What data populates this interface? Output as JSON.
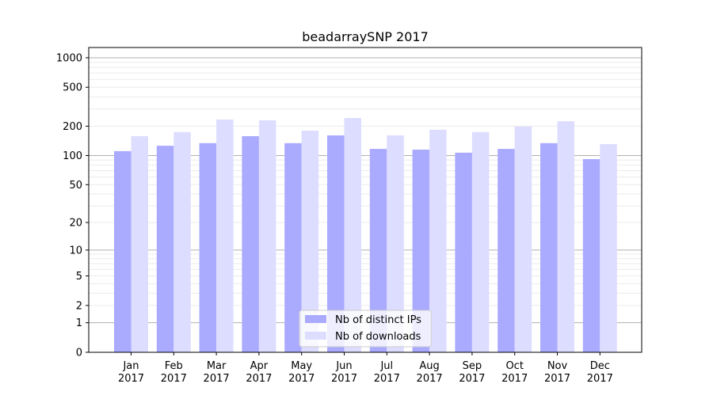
{
  "chart_data": {
    "type": "bar",
    "title": "beadarraySNP 2017",
    "xlabel": "",
    "ylabel": "",
    "yscale": "symlog (log10(1+y))",
    "ylim": [
      0,
      1270
    ],
    "yticks": [
      0,
      1,
      2,
      5,
      10,
      20,
      50,
      100,
      200,
      500,
      1000
    ],
    "grid": true,
    "legend_position": "bottom-center",
    "categories": [
      "Jan\n2017",
      "Feb\n2017",
      "Mar\n2017",
      "Apr\n2017",
      "May\n2017",
      "Jun\n2017",
      "Jul\n2017",
      "Aug\n2017",
      "Sep\n2017",
      "Oct\n2017",
      "Nov\n2017",
      "Dec\n2017"
    ],
    "series": [
      {
        "name": "Nb of distinct IPs",
        "color": "#aaaaff",
        "values": [
          111,
          126,
          134,
          158,
          134,
          161,
          117,
          115,
          107,
          117,
          134,
          92
        ]
      },
      {
        "name": "Nb of downloads",
        "color": "#ddddff",
        "values": [
          158,
          174,
          234,
          230,
          180,
          243,
          161,
          184,
          174,
          198,
          225,
          131
        ]
      }
    ]
  }
}
